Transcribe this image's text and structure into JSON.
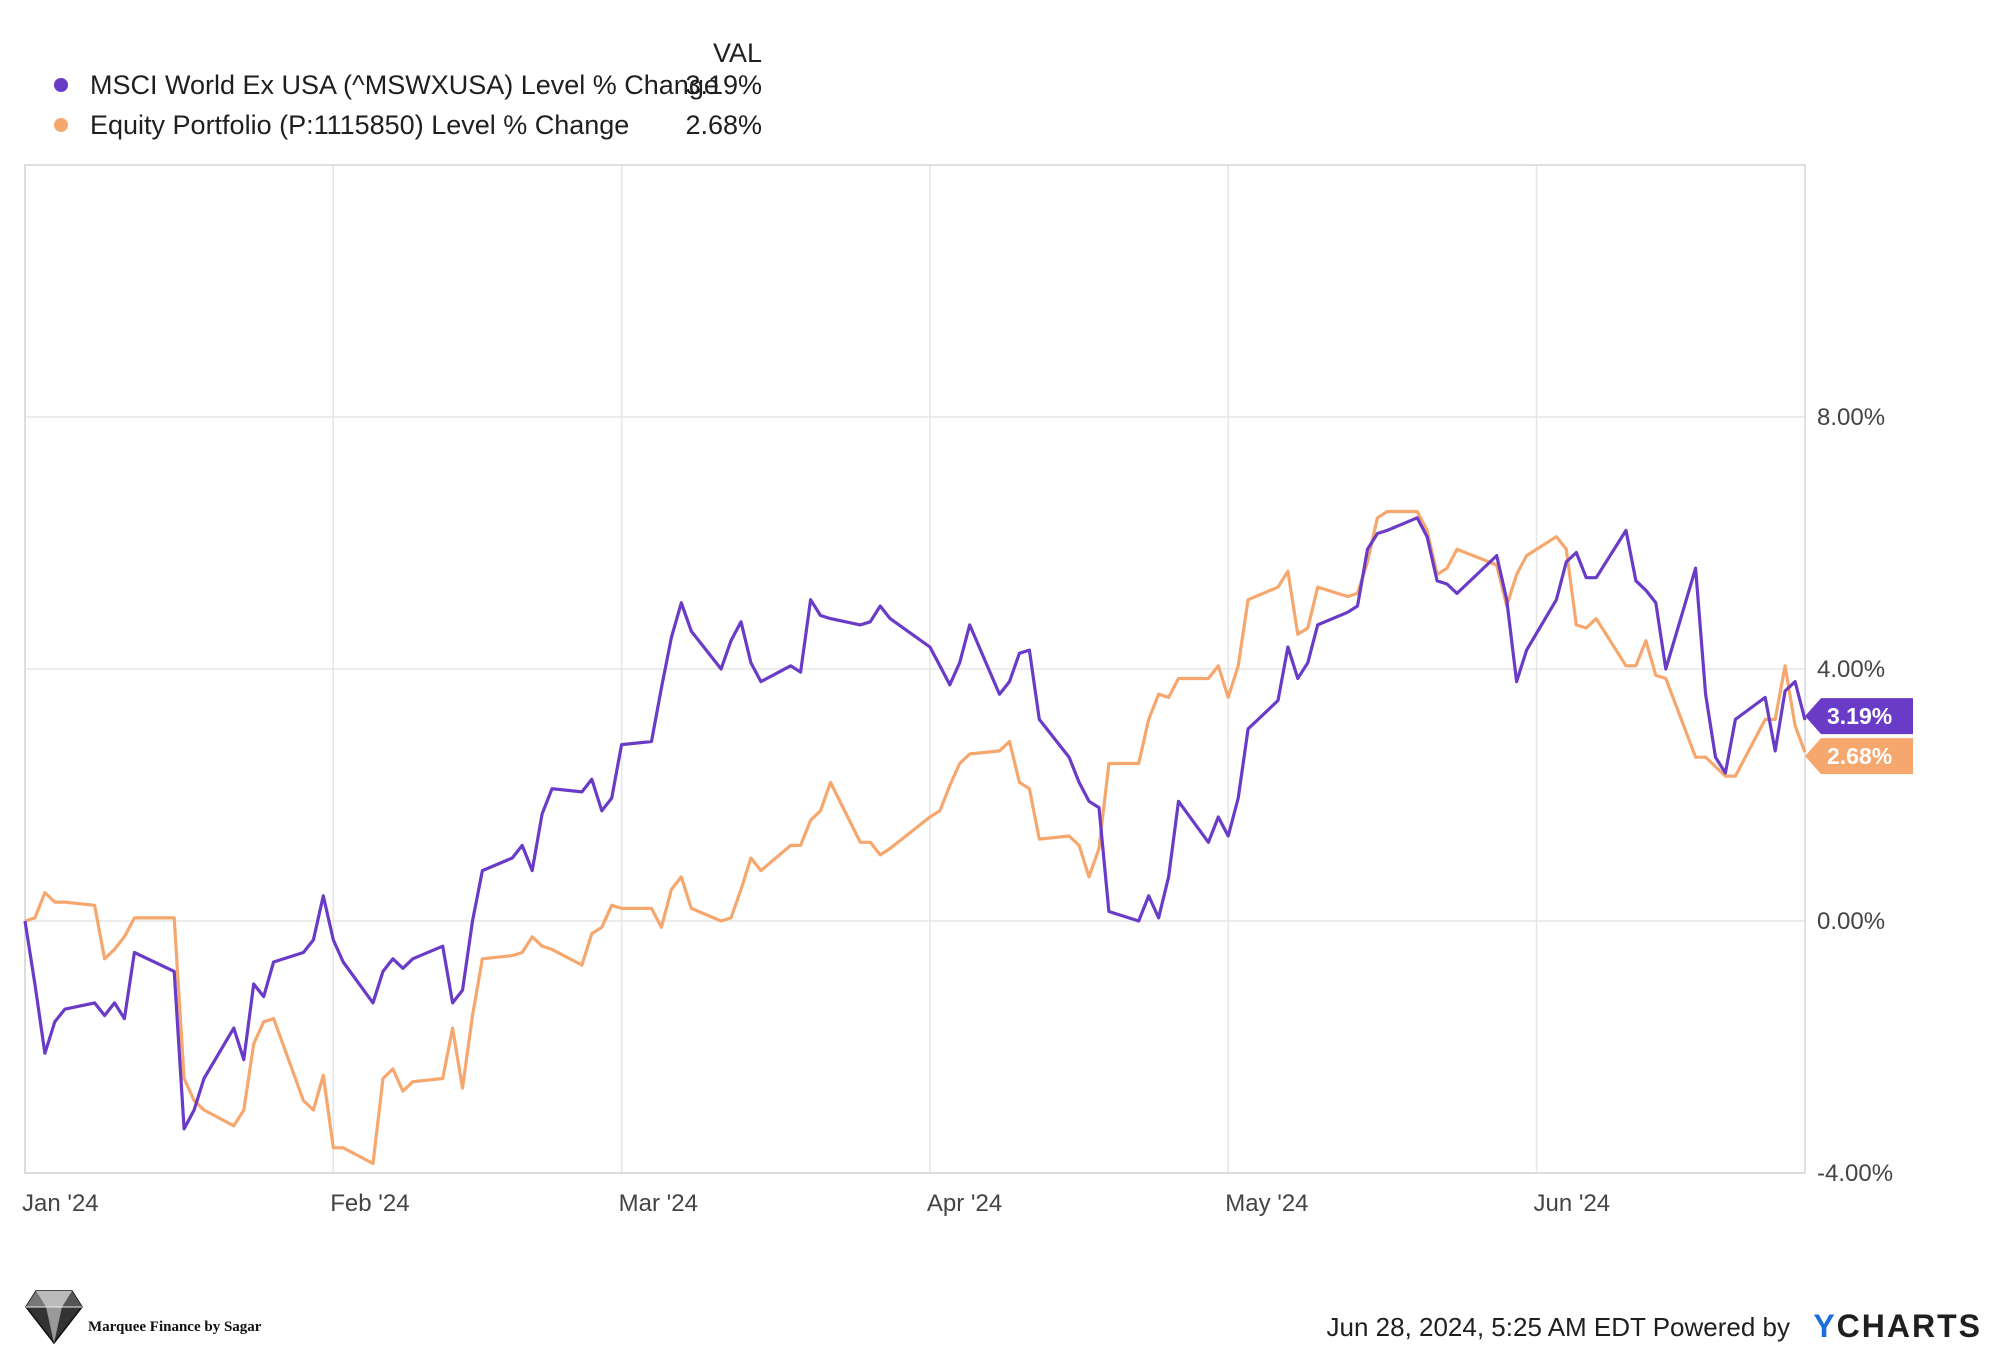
{
  "chart_data": {
    "type": "line",
    "legend_header": "VAL",
    "legend_position": "top-left",
    "grid": true,
    "y_axis_side": "right",
    "ylim": [
      -4,
      12
    ],
    "yticks": [
      {
        "value": 8,
        "label": "8.00%"
      },
      {
        "value": 4,
        "label": "4.00%"
      },
      {
        "value": 0,
        "label": "0.00%"
      },
      {
        "value": -4,
        "label": "-4.00%"
      }
    ],
    "xlim": [
      "2024-01-01",
      "2024-06-28"
    ],
    "xticks": [
      {
        "date": "2024-01-01",
        "label": "Jan '24"
      },
      {
        "date": "2024-02-01",
        "label": "Feb '24"
      },
      {
        "date": "2024-03-01",
        "label": "Mar '24"
      },
      {
        "date": "2024-04-01",
        "label": "Apr '24"
      },
      {
        "date": "2024-05-01",
        "label": "May '24"
      },
      {
        "date": "2024-06-01",
        "label": "Jun '24"
      }
    ],
    "series": [
      {
        "name": "MSCI World Ex USA (^MSWXUSA) Level % Change",
        "last_value_label": "3.19%",
        "color": "#6a3bc7",
        "points": [
          [
            "2024-01-01",
            0.0
          ],
          [
            "2024-01-02",
            -1.0
          ],
          [
            "2024-01-03",
            -2.1
          ],
          [
            "2024-01-04",
            -1.6
          ],
          [
            "2024-01-05",
            -1.4
          ],
          [
            "2024-01-08",
            -1.3
          ],
          [
            "2024-01-09",
            -1.5
          ],
          [
            "2024-01-10",
            -1.3
          ],
          [
            "2024-01-11",
            -1.55
          ],
          [
            "2024-01-12",
            -0.5
          ],
          [
            "2024-01-16",
            -0.8
          ],
          [
            "2024-01-17",
            -3.3
          ],
          [
            "2024-01-18",
            -3.0
          ],
          [
            "2024-01-19",
            -2.5
          ],
          [
            "2024-01-22",
            -1.7
          ],
          [
            "2024-01-23",
            -2.2
          ],
          [
            "2024-01-24",
            -1.0
          ],
          [
            "2024-01-25",
            -1.2
          ],
          [
            "2024-01-26",
            -0.65
          ],
          [
            "2024-01-29",
            -0.5
          ],
          [
            "2024-01-30",
            -0.3
          ],
          [
            "2024-01-31",
            0.4
          ],
          [
            "2024-02-01",
            -0.3
          ],
          [
            "2024-02-02",
            -0.65
          ],
          [
            "2024-02-05",
            -1.3
          ],
          [
            "2024-02-06",
            -0.8
          ],
          [
            "2024-02-07",
            -0.6
          ],
          [
            "2024-02-08",
            -0.75
          ],
          [
            "2024-02-09",
            -0.6
          ],
          [
            "2024-02-12",
            -0.4
          ],
          [
            "2024-02-13",
            -1.3
          ],
          [
            "2024-02-14",
            -1.1
          ],
          [
            "2024-02-15",
            0.0
          ],
          [
            "2024-02-16",
            0.8
          ],
          [
            "2024-02-19",
            1.0
          ],
          [
            "2024-02-20",
            1.2
          ],
          [
            "2024-02-21",
            0.8
          ],
          [
            "2024-02-22",
            1.7
          ],
          [
            "2024-02-23",
            2.1
          ],
          [
            "2024-02-26",
            2.05
          ],
          [
            "2024-02-27",
            2.25
          ],
          [
            "2024-02-28",
            1.75
          ],
          [
            "2024-02-29",
            1.95
          ],
          [
            "2024-03-01",
            2.8
          ],
          [
            "2024-03-04",
            2.85
          ],
          [
            "2024-03-05",
            3.7
          ],
          [
            "2024-03-06",
            4.5
          ],
          [
            "2024-03-07",
            5.05
          ],
          [
            "2024-03-08",
            4.6
          ],
          [
            "2024-03-11",
            4.0
          ],
          [
            "2024-03-12",
            4.45
          ],
          [
            "2024-03-13",
            4.75
          ],
          [
            "2024-03-14",
            4.1
          ],
          [
            "2024-03-15",
            3.8
          ],
          [
            "2024-03-18",
            4.05
          ],
          [
            "2024-03-19",
            3.95
          ],
          [
            "2024-03-20",
            5.1
          ],
          [
            "2024-03-21",
            4.85
          ],
          [
            "2024-03-22",
            4.8
          ],
          [
            "2024-03-25",
            4.7
          ],
          [
            "2024-03-26",
            4.75
          ],
          [
            "2024-03-27",
            5.0
          ],
          [
            "2024-03-28",
            4.8
          ],
          [
            "2024-04-01",
            4.35
          ],
          [
            "2024-04-02",
            4.05
          ],
          [
            "2024-04-03",
            3.75
          ],
          [
            "2024-04-04",
            4.1
          ],
          [
            "2024-04-05",
            4.7
          ],
          [
            "2024-04-08",
            3.6
          ],
          [
            "2024-04-09",
            3.8
          ],
          [
            "2024-04-10",
            4.25
          ],
          [
            "2024-04-11",
            4.3
          ],
          [
            "2024-04-12",
            3.2
          ],
          [
            "2024-04-15",
            2.6
          ],
          [
            "2024-04-16",
            2.2
          ],
          [
            "2024-04-17",
            1.9
          ],
          [
            "2024-04-18",
            1.8
          ],
          [
            "2024-04-19",
            0.15
          ],
          [
            "2024-04-22",
            0.0
          ],
          [
            "2024-04-23",
            0.4
          ],
          [
            "2024-04-24",
            0.05
          ],
          [
            "2024-04-25",
            0.7
          ],
          [
            "2024-04-26",
            1.9
          ],
          [
            "2024-04-29",
            1.25
          ],
          [
            "2024-04-30",
            1.65
          ],
          [
            "2024-05-01",
            1.35
          ],
          [
            "2024-05-02",
            1.95
          ],
          [
            "2024-05-03",
            3.05
          ],
          [
            "2024-05-06",
            3.5
          ],
          [
            "2024-05-07",
            4.35
          ],
          [
            "2024-05-08",
            3.85
          ],
          [
            "2024-05-09",
            4.1
          ],
          [
            "2024-05-10",
            4.7
          ],
          [
            "2024-05-13",
            4.9
          ],
          [
            "2024-05-14",
            5.0
          ],
          [
            "2024-05-15",
            5.9
          ],
          [
            "2024-05-16",
            6.15
          ],
          [
            "2024-05-17",
            6.2
          ],
          [
            "2024-05-20",
            6.4
          ],
          [
            "2024-05-21",
            6.1
          ],
          [
            "2024-05-22",
            5.4
          ],
          [
            "2024-05-23",
            5.35
          ],
          [
            "2024-05-24",
            5.2
          ],
          [
            "2024-05-28",
            5.8
          ],
          [
            "2024-05-29",
            5.1
          ],
          [
            "2024-05-30",
            3.8
          ],
          [
            "2024-05-31",
            4.3
          ],
          [
            "2024-06-03",
            5.1
          ],
          [
            "2024-06-04",
            5.7
          ],
          [
            "2024-06-05",
            5.85
          ],
          [
            "2024-06-06",
            5.45
          ],
          [
            "2024-06-07",
            5.45
          ],
          [
            "2024-06-10",
            6.2
          ],
          [
            "2024-06-11",
            5.4
          ],
          [
            "2024-06-12",
            5.25
          ],
          [
            "2024-06-13",
            5.05
          ],
          [
            "2024-06-14",
            4.0
          ],
          [
            "2024-06-17",
            5.6
          ],
          [
            "2024-06-18",
            3.6
          ],
          [
            "2024-06-19",
            2.6
          ],
          [
            "2024-06-20",
            2.35
          ],
          [
            "2024-06-21",
            3.2
          ],
          [
            "2024-06-24",
            3.55
          ],
          [
            "2024-06-25",
            2.7
          ],
          [
            "2024-06-26",
            3.65
          ],
          [
            "2024-06-27",
            3.8
          ],
          [
            "2024-06-28",
            3.19
          ]
        ]
      },
      {
        "name": "Equity Portfolio (P:1115850) Level % Change",
        "last_value_label": "2.68%",
        "color": "#f6a76e",
        "points": [
          [
            "2024-01-01",
            0.0
          ],
          [
            "2024-01-02",
            0.05
          ],
          [
            "2024-01-03",
            0.45
          ],
          [
            "2024-01-04",
            0.3
          ],
          [
            "2024-01-05",
            0.3
          ],
          [
            "2024-01-08",
            0.25
          ],
          [
            "2024-01-09",
            -0.6
          ],
          [
            "2024-01-10",
            -0.45
          ],
          [
            "2024-01-11",
            -0.25
          ],
          [
            "2024-01-12",
            0.05
          ],
          [
            "2024-01-16",
            0.05
          ],
          [
            "2024-01-17",
            -2.5
          ],
          [
            "2024-01-18",
            -2.85
          ],
          [
            "2024-01-19",
            -3.0
          ],
          [
            "2024-01-22",
            -3.25
          ],
          [
            "2024-01-23",
            -3.0
          ],
          [
            "2024-01-24",
            -1.95
          ],
          [
            "2024-01-25",
            -1.6
          ],
          [
            "2024-01-26",
            -1.55
          ],
          [
            "2024-01-29",
            -2.85
          ],
          [
            "2024-01-30",
            -3.0
          ],
          [
            "2024-01-31",
            -2.45
          ],
          [
            "2024-02-01",
            -3.6
          ],
          [
            "2024-02-02",
            -3.6
          ],
          [
            "2024-02-05",
            -3.85
          ],
          [
            "2024-02-06",
            -2.5
          ],
          [
            "2024-02-07",
            -2.35
          ],
          [
            "2024-02-08",
            -2.7
          ],
          [
            "2024-02-09",
            -2.55
          ],
          [
            "2024-02-12",
            -2.5
          ],
          [
            "2024-02-13",
            -1.7
          ],
          [
            "2024-02-14",
            -2.65
          ],
          [
            "2024-02-15",
            -1.5
          ],
          [
            "2024-02-16",
            -0.6
          ],
          [
            "2024-02-19",
            -0.55
          ],
          [
            "2024-02-20",
            -0.5
          ],
          [
            "2024-02-21",
            -0.25
          ],
          [
            "2024-02-22",
            -0.4
          ],
          [
            "2024-02-23",
            -0.45
          ],
          [
            "2024-02-26",
            -0.7
          ],
          [
            "2024-02-27",
            -0.2
          ],
          [
            "2024-02-28",
            -0.1
          ],
          [
            "2024-02-29",
            0.25
          ],
          [
            "2024-03-01",
            0.2
          ],
          [
            "2024-03-04",
            0.2
          ],
          [
            "2024-03-05",
            -0.1
          ],
          [
            "2024-03-06",
            0.5
          ],
          [
            "2024-03-07",
            0.7
          ],
          [
            "2024-03-08",
            0.2
          ],
          [
            "2024-03-11",
            0.0
          ],
          [
            "2024-03-12",
            0.05
          ],
          [
            "2024-03-13",
            0.5
          ],
          [
            "2024-03-14",
            1.0
          ],
          [
            "2024-03-15",
            0.8
          ],
          [
            "2024-03-18",
            1.2
          ],
          [
            "2024-03-19",
            1.2
          ],
          [
            "2024-03-20",
            1.6
          ],
          [
            "2024-03-21",
            1.75
          ],
          [
            "2024-03-22",
            2.2
          ],
          [
            "2024-03-25",
            1.25
          ],
          [
            "2024-03-26",
            1.25
          ],
          [
            "2024-03-27",
            1.05
          ],
          [
            "2024-03-28",
            1.15
          ],
          [
            "2024-04-01",
            1.65
          ],
          [
            "2024-04-02",
            1.75
          ],
          [
            "2024-04-03",
            2.15
          ],
          [
            "2024-04-04",
            2.5
          ],
          [
            "2024-04-05",
            2.65
          ],
          [
            "2024-04-08",
            2.7
          ],
          [
            "2024-04-09",
            2.85
          ],
          [
            "2024-04-10",
            2.2
          ],
          [
            "2024-04-11",
            2.1
          ],
          [
            "2024-04-12",
            1.3
          ],
          [
            "2024-04-15",
            1.35
          ],
          [
            "2024-04-16",
            1.2
          ],
          [
            "2024-04-17",
            0.7
          ],
          [
            "2024-04-18",
            1.15
          ],
          [
            "2024-04-19",
            2.5
          ],
          [
            "2024-04-22",
            2.5
          ],
          [
            "2024-04-23",
            3.2
          ],
          [
            "2024-04-24",
            3.6
          ],
          [
            "2024-04-25",
            3.55
          ],
          [
            "2024-04-26",
            3.85
          ],
          [
            "2024-04-29",
            3.85
          ],
          [
            "2024-04-30",
            4.05
          ],
          [
            "2024-05-01",
            3.55
          ],
          [
            "2024-05-02",
            4.05
          ],
          [
            "2024-05-03",
            5.1
          ],
          [
            "2024-05-06",
            5.3
          ],
          [
            "2024-05-07",
            5.55
          ],
          [
            "2024-05-08",
            4.55
          ],
          [
            "2024-05-09",
            4.65
          ],
          [
            "2024-05-10",
            5.3
          ],
          [
            "2024-05-13",
            5.15
          ],
          [
            "2024-05-14",
            5.2
          ],
          [
            "2024-05-15",
            5.7
          ],
          [
            "2024-05-16",
            6.4
          ],
          [
            "2024-05-17",
            6.5
          ],
          [
            "2024-05-20",
            6.5
          ],
          [
            "2024-05-21",
            6.2
          ],
          [
            "2024-05-22",
            5.5
          ],
          [
            "2024-05-23",
            5.6
          ],
          [
            "2024-05-24",
            5.9
          ],
          [
            "2024-05-28",
            5.65
          ],
          [
            "2024-05-29",
            5.0
          ],
          [
            "2024-05-30",
            5.5
          ],
          [
            "2024-05-31",
            5.8
          ],
          [
            "2024-06-03",
            6.1
          ],
          [
            "2024-06-04",
            5.9
          ],
          [
            "2024-06-05",
            4.7
          ],
          [
            "2024-06-06",
            4.65
          ],
          [
            "2024-06-07",
            4.8
          ],
          [
            "2024-06-10",
            4.05
          ],
          [
            "2024-06-11",
            4.05
          ],
          [
            "2024-06-12",
            4.45
          ],
          [
            "2024-06-13",
            3.9
          ],
          [
            "2024-06-14",
            3.85
          ],
          [
            "2024-06-17",
            2.6
          ],
          [
            "2024-06-18",
            2.6
          ],
          [
            "2024-06-19",
            2.45
          ],
          [
            "2024-06-20",
            2.3
          ],
          [
            "2024-06-21",
            2.3
          ],
          [
            "2024-06-24",
            3.2
          ],
          [
            "2024-06-25",
            3.2
          ],
          [
            "2024-06-26",
            4.05
          ],
          [
            "2024-06-27",
            3.1
          ],
          [
            "2024-06-28",
            2.68
          ]
        ]
      }
    ]
  },
  "footer": {
    "timestamp": "Jun 28, 2024, 5:25 AM EDT",
    "powered_by": "Powered by",
    "logo_y": "Y",
    "logo_rest": "CHARTS"
  },
  "watermark": {
    "text": "Marquee Finance by Sagar",
    "icon": "diamond-icon"
  }
}
